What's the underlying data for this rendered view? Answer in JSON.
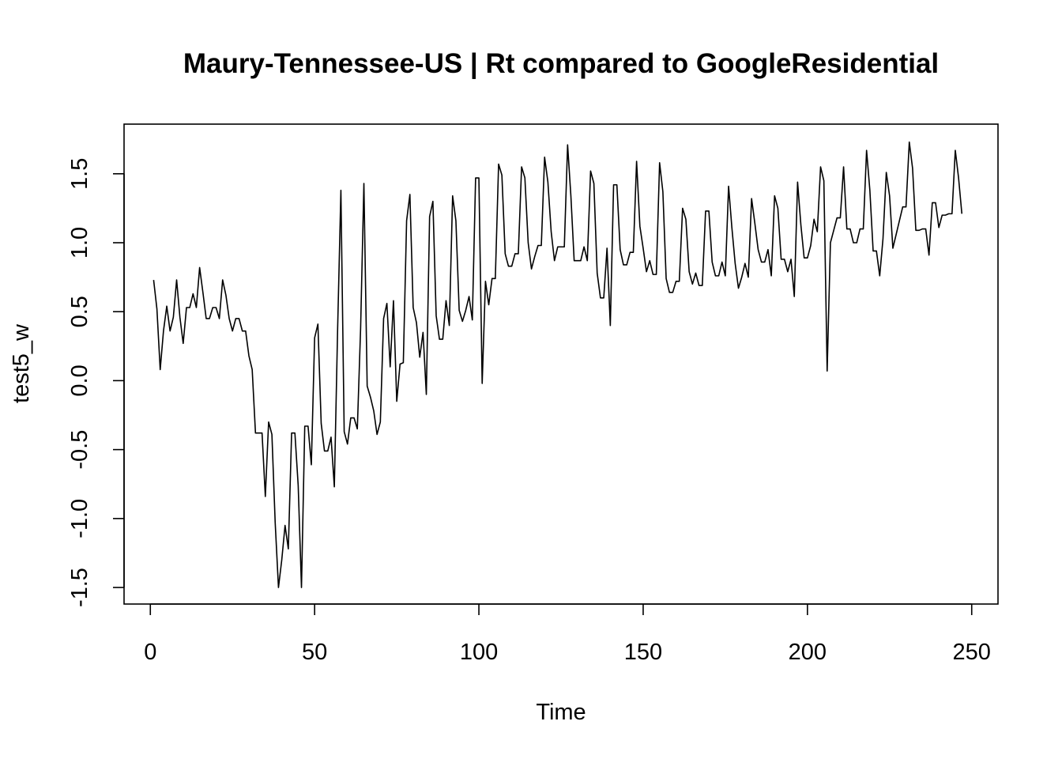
{
  "chart_data": {
    "type": "line",
    "title": "Maury-Tennessee-US | Rt compared to GoogleResidential",
    "xlabel": "Time",
    "ylabel": "test5_w",
    "xlim": [
      -8,
      258
    ],
    "ylim": [
      -1.62,
      1.86
    ],
    "xticks": [
      0,
      50,
      100,
      150,
      200,
      250
    ],
    "yticks": [
      -1.5,
      -1.0,
      -0.5,
      0.0,
      0.5,
      1.0,
      1.5
    ],
    "ytick_labels": [
      "-1.5",
      "-1.0",
      "-0.5",
      "0.0",
      "0.5",
      "1.0",
      "1.5"
    ],
    "grid": false,
    "series": [
      {
        "x_start": 1,
        "values": [
          0.73,
          0.52,
          0.08,
          0.36,
          0.54,
          0.36,
          0.46,
          0.73,
          0.46,
          0.27,
          0.53,
          0.53,
          0.63,
          0.53,
          0.82,
          0.64,
          0.45,
          0.45,
          0.53,
          0.53,
          0.45,
          0.73,
          0.62,
          0.45,
          0.36,
          0.45,
          0.45,
          0.36,
          0.36,
          0.18,
          0.08,
          -0.38,
          -0.38,
          -0.38,
          -0.84,
          -0.3,
          -0.39,
          -1.03,
          -1.5,
          -1.3,
          -1.05,
          -1.22,
          -0.38,
          -0.38,
          -0.76,
          -1.5,
          -0.33,
          -0.33,
          -0.61,
          0.31,
          0.41,
          -0.31,
          -0.51,
          -0.51,
          -0.41,
          -0.77,
          0.37,
          1.38,
          -0.37,
          -0.46,
          -0.27,
          -0.27,
          -0.35,
          0.38,
          1.43,
          -0.04,
          -0.12,
          -0.22,
          -0.39,
          -0.3,
          0.45,
          0.56,
          0.1,
          0.58,
          -0.15,
          0.12,
          0.13,
          1.16,
          1.35,
          0.53,
          0.42,
          0.17,
          0.35,
          -0.1,
          1.19,
          1.3,
          0.47,
          0.3,
          0.3,
          0.58,
          0.4,
          1.34,
          1.16,
          0.51,
          0.43,
          0.51,
          0.61,
          0.44,
          1.47,
          1.47,
          -0.02,
          0.72,
          0.55,
          0.74,
          0.74,
          1.57,
          1.49,
          0.92,
          0.83,
          0.83,
          0.92,
          0.92,
          1.55,
          1.47,
          1.0,
          0.81,
          0.9,
          0.98,
          0.98,
          1.62,
          1.44,
          1.08,
          0.87,
          0.97,
          0.97,
          0.97,
          1.71,
          1.34,
          0.87,
          0.87,
          0.87,
          0.97,
          0.87,
          1.52,
          1.43,
          0.78,
          0.6,
          0.6,
          0.96,
          0.4,
          1.42,
          1.42,
          0.95,
          0.84,
          0.84,
          0.93,
          0.93,
          1.59,
          1.12,
          0.96,
          0.79,
          0.87,
          0.77,
          0.77,
          1.58,
          1.37,
          0.74,
          0.64,
          0.64,
          0.72,
          0.72,
          1.25,
          1.17,
          0.79,
          0.7,
          0.78,
          0.69,
          0.69,
          1.23,
          1.23,
          0.86,
          0.76,
          0.76,
          0.86,
          0.76,
          1.41,
          1.11,
          0.85,
          0.67,
          0.75,
          0.85,
          0.75,
          1.32,
          1.14,
          0.95,
          0.86,
          0.86,
          0.95,
          0.76,
          1.34,
          1.25,
          0.88,
          0.88,
          0.79,
          0.88,
          0.61,
          1.44,
          1.13,
          0.89,
          0.89,
          0.98,
          1.17,
          1.08,
          1.55,
          1.45,
          0.07,
          1.0,
          1.09,
          1.18,
          1.18,
          1.55,
          1.1,
          1.1,
          1.0,
          1.0,
          1.1,
          1.1,
          1.67,
          1.38,
          0.94,
          0.94,
          0.76,
          1.03,
          1.51,
          1.34,
          0.96,
          1.06,
          1.16,
          1.26,
          1.26,
          1.73,
          1.54,
          1.09,
          1.09,
          1.1,
          1.1,
          0.91,
          1.29,
          1.29,
          1.11,
          1.2,
          1.2,
          1.21,
          1.21,
          1.67,
          1.47,
          1.21
        ]
      }
    ]
  }
}
